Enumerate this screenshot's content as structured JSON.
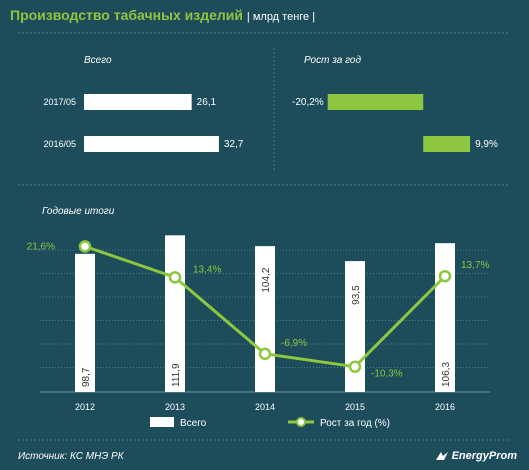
{
  "header": {
    "title": "Производство табачных изделий",
    "unit": "| млрд тенге |"
  },
  "footer": {
    "source": "Источник: КС МНЭ РК",
    "brand": "EnergyProm"
  },
  "colors": {
    "background": "#1d4c5b",
    "accent": "#8dc63f",
    "bars": "#ffffff"
  },
  "chart_data": [
    {
      "type": "bar",
      "orientation": "horizontal",
      "title": "Всего",
      "categories": [
        "2017/05",
        "2016/05"
      ],
      "values": [
        26.1,
        32.7
      ],
      "value_labels": [
        "26,1",
        "32,7"
      ],
      "xlim": [
        0,
        40
      ]
    },
    {
      "type": "bar",
      "orientation": "horizontal",
      "title": "Рост за год",
      "categories": [
        "2017/05",
        "2016/05"
      ],
      "values": [
        -20.2,
        9.9
      ],
      "value_labels": [
        "-20,2%",
        "9,9%"
      ],
      "xlim": [
        -25,
        12
      ]
    },
    {
      "type": "bar+line",
      "title": "Годовые итоги",
      "categories": [
        "2012",
        "2013",
        "2014",
        "2015",
        "2016"
      ],
      "grid": true,
      "legend": "bottom",
      "series": [
        {
          "name": "Всего",
          "type": "bar",
          "values": [
            98.7,
            111.9,
            104.2,
            93.5,
            106.3
          ],
          "value_labels": [
            "98,7",
            "111,9",
            "104,2",
            "93,5",
            "106,3"
          ],
          "ylim": [
            0,
            125
          ]
        },
        {
          "name": "Рост за год (%)",
          "type": "line",
          "values": [
            21.6,
            13.4,
            -6.9,
            -10.3,
            13.7
          ],
          "value_labels": [
            "21,6%",
            "13,4%",
            "-6,9%",
            "-10,3%",
            "13,7%"
          ],
          "ylim": [
            -12.5,
            22.5
          ]
        }
      ]
    }
  ]
}
